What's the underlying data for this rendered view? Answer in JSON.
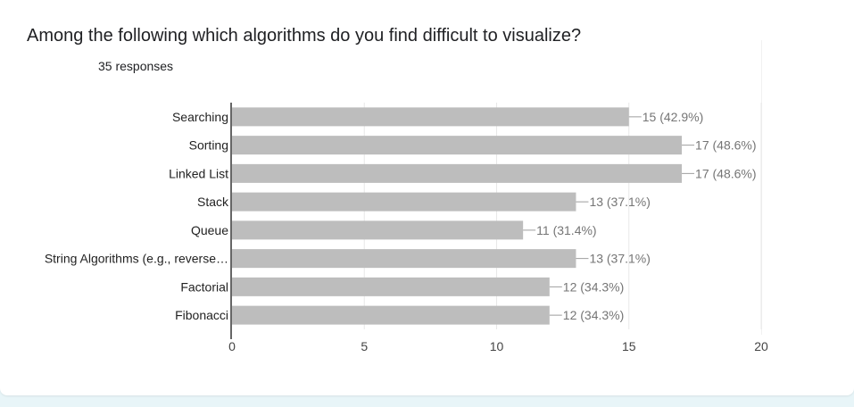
{
  "question": {
    "title": "Among the following which algorithms do you find difficult to visualize?",
    "responses": "35 responses"
  },
  "colors": {
    "bar": "#bdbdbd",
    "grid": "#e8e8e8",
    "axis": "#333333",
    "label": "#222222",
    "value_label": "#757575"
  },
  "chart_data": {
    "type": "bar",
    "orientation": "horizontal",
    "categories": [
      "Searching",
      "Sorting",
      "Linked List",
      "Stack",
      "Queue",
      "String Algorithms (e.g., reverse…",
      "Factorial",
      "Fibonacci"
    ],
    "values": [
      15,
      17,
      17,
      13,
      11,
      13,
      12,
      12
    ],
    "value_labels": [
      "15 (42.9%)",
      "17 (48.6%)",
      "17 (48.6%)",
      "13 (37.1%)",
      "11 (31.4%)",
      "13 (37.1%)",
      "12 (34.3%)",
      "12 (34.3%)"
    ],
    "xlim": [
      0,
      20
    ],
    "xticks": [
      0,
      5,
      10,
      15,
      20
    ],
    "grid": true,
    "legend": "none"
  }
}
